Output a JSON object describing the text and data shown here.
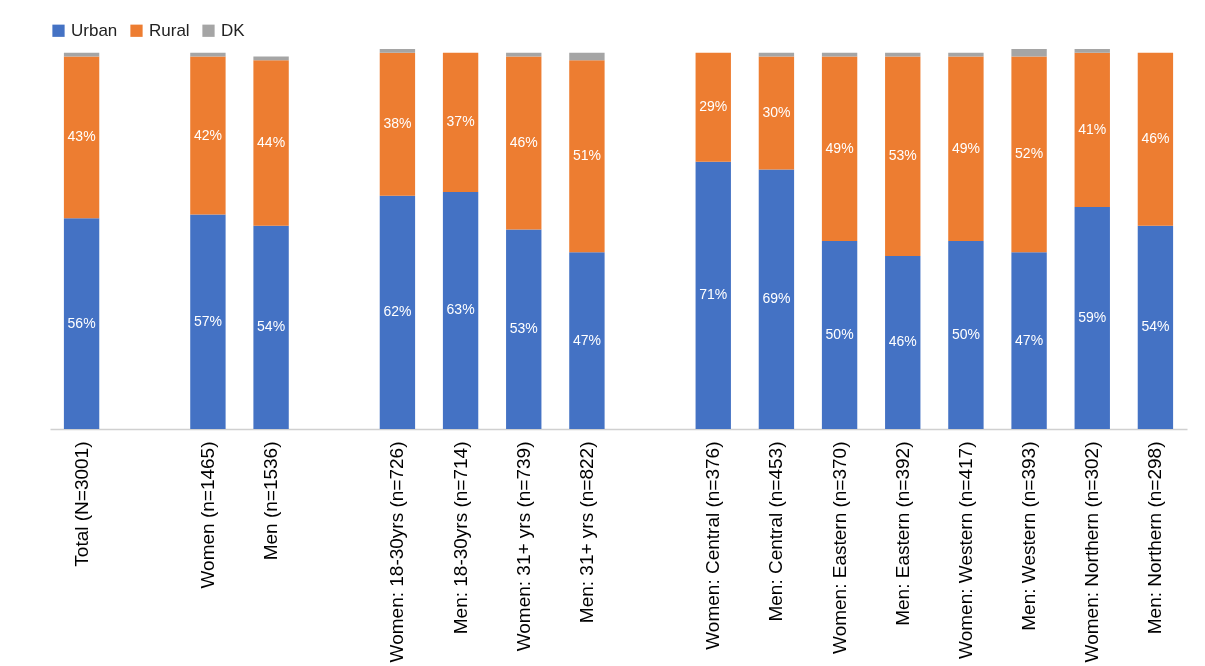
{
  "chart_data": {
    "type": "bar",
    "stacked": true,
    "legend": "top",
    "tick_labels": "x",
    "categories": [
      "Total (N=3001)",
      null,
      "Women (n=1465)",
      "Men (n=1536)",
      null,
      "Women: 18-30yrs (n=726)",
      "Men: 18-30yrs (n=714)",
      "Women: 31+ yrs (n=739)",
      "Men: 31+ yrs (n=822)",
      null,
      "Women: Central (n=376)",
      "Men: Central (n=453)",
      "Women: Eastern (n=370)",
      "Men: Eastern (n=392)",
      "Women: Western (n=417)",
      "Men: Western (n=393)",
      "Women: Northern (n=302)",
      "Men: Northern (n=298)"
    ],
    "series": [
      {
        "name": "Urban",
        "color": "#4472c4",
        "values": [
          56,
          null,
          57,
          54,
          null,
          62,
          63,
          53,
          47,
          null,
          71,
          69,
          50,
          46,
          50,
          47,
          59,
          54
        ],
        "value_labels": [
          "56%",
          null,
          "57%",
          "54%",
          null,
          "62%",
          "63%",
          "53%",
          "47%",
          null,
          "71%",
          "69%",
          "50%",
          "46%",
          "50%",
          "47%",
          "59%",
          "54%"
        ]
      },
      {
        "name": "Rural",
        "color": "#ed7d31",
        "values": [
          43,
          null,
          42,
          44,
          null,
          38,
          37,
          46,
          51,
          null,
          29,
          30,
          49,
          53,
          49,
          52,
          41,
          46
        ],
        "value_labels": [
          "43%",
          null,
          "42%",
          "44%",
          null,
          "38%",
          "37%",
          "46%",
          "51%",
          null,
          "29%",
          "30%",
          "49%",
          "53%",
          "49%",
          "52%",
          "41%",
          "46%"
        ]
      },
      {
        "name": "DK",
        "color": "#a5a5a5",
        "values": [
          1,
          null,
          1,
          1,
          null,
          1,
          0,
          1,
          2,
          null,
          0,
          1,
          1,
          1,
          1,
          2,
          1,
          0
        ]
      }
    ]
  }
}
